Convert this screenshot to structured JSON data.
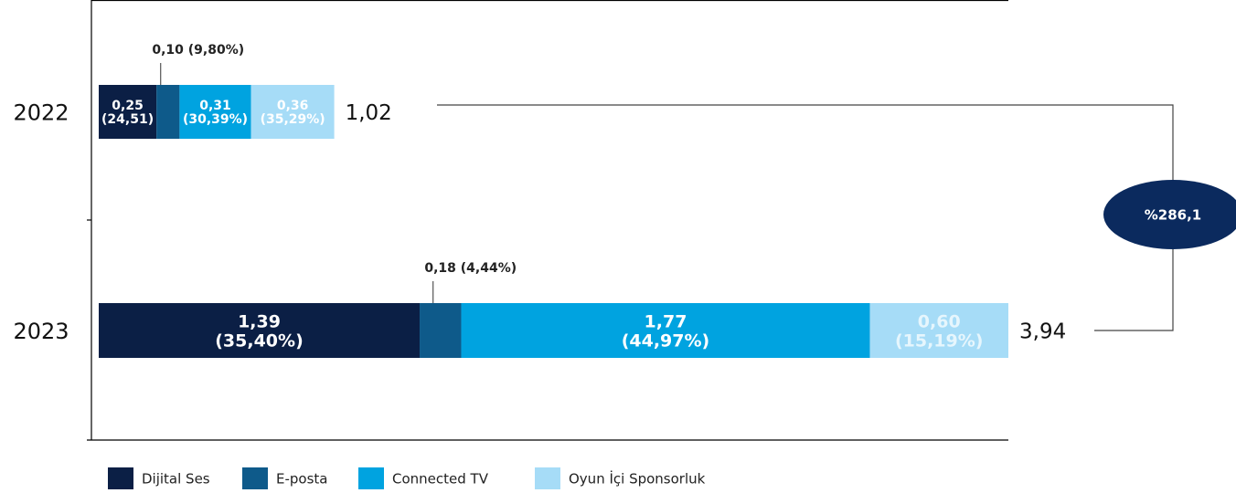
{
  "chart_data": {
    "type": "stacked-barh",
    "categories": [
      "2022",
      "2023"
    ],
    "series": [
      {
        "name": "Dijital Ses",
        "color": "#0b1f45",
        "values": [
          0.25,
          1.39
        ],
        "value_labels": [
          "0,25 (24,51)",
          "1,39 (35,40%)"
        ]
      },
      {
        "name": "E-posta",
        "color": "#0e5a8a",
        "values": [
          0.1,
          0.18
        ],
        "value_labels": [
          "0,10 (9,80%)",
          "0,18 (4,44%)"
        ]
      },
      {
        "name": "Connected TV",
        "color": "#00a3e0",
        "values": [
          0.31,
          1.77
        ],
        "value_labels": [
          "0,31 (30,39%)",
          "1,77 (44,97%)"
        ]
      },
      {
        "name": "Oyun İçi Sponsorluk",
        "color": "#a6dcf7",
        "values": [
          0.36,
          0.6
        ],
        "value_labels": [
          "0,36 (35,29%)",
          "0,60 (15,19%)"
        ]
      }
    ],
    "totals": [
      1.02,
      3.94
    ],
    "total_labels": [
      "1,02",
      "3,94"
    ],
    "annotation": "%286,1"
  }
}
